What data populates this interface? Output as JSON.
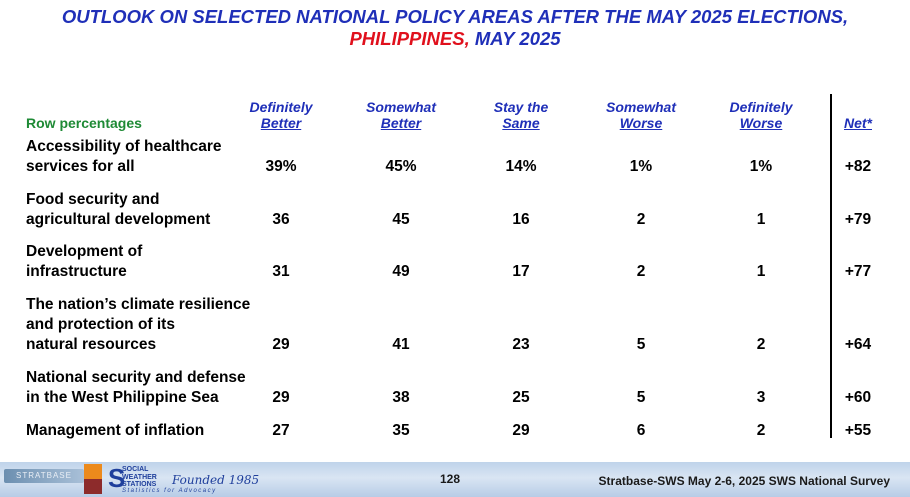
{
  "title": {
    "line1": "OUTLOOK ON SELECTED NATIONAL POLICY AREAS AFTER THE MAY 2025 ELECTIONS,",
    "line2_red": "PHILIPPINES,",
    "line2_rest": " MAY 2025"
  },
  "row_percentages_label": "Row percentages",
  "chart_data": {
    "type": "table",
    "columns": [
      {
        "line1": "Definitely",
        "line2": "Better"
      },
      {
        "line1": "Somewhat",
        "line2": "Better"
      },
      {
        "line1": "Stay the",
        "line2": "Same"
      },
      {
        "line1": "Somewhat",
        "line2": "Worse"
      },
      {
        "line1": "Definitely",
        "line2": "Worse"
      },
      {
        "line1": "",
        "line2": "Net*"
      }
    ],
    "rows": [
      {
        "label": [
          "Accessibility of healthcare",
          "services for all"
        ],
        "values": [
          "39%",
          "45%",
          "14%",
          "1%",
          "1%",
          "+82"
        ]
      },
      {
        "label": [
          "Food security and",
          "agricultural development"
        ],
        "values": [
          "36",
          "45",
          "16",
          "2",
          "1",
          "+79"
        ]
      },
      {
        "label": [
          "Development of",
          "infrastructure"
        ],
        "values": [
          "31",
          "49",
          "17",
          "2",
          "1",
          "+77"
        ]
      },
      {
        "label": [
          "The nation’s climate resilience",
          "and protection of its",
          "natural resources"
        ],
        "values": [
          "29",
          "41",
          "23",
          "5",
          "2",
          "+64"
        ]
      },
      {
        "label": [
          "National security and defense",
          "in the West Philippine Sea"
        ],
        "values": [
          "29",
          "38",
          "25",
          "5",
          "3",
          "+60"
        ]
      },
      {
        "label": [
          "Management of inflation"
        ],
        "values": [
          "27",
          "35",
          "29",
          "6",
          "2",
          "+55"
        ]
      }
    ]
  },
  "footer": {
    "logo1_text": "STRATBASE",
    "sws_name": [
      "SOCIAL",
      "WEATHER",
      "STATIONS"
    ],
    "founded": "Founded 1985",
    "tagline": "Statistics for Advocacy",
    "page_number": "128",
    "survey": "Stratbase-SWS May 2-6, 2025 SWS National Survey"
  },
  "colors": {
    "title_blue": "#1f2fb8",
    "title_red": "#e0101c",
    "row_pct_green": "#1e8a35"
  }
}
